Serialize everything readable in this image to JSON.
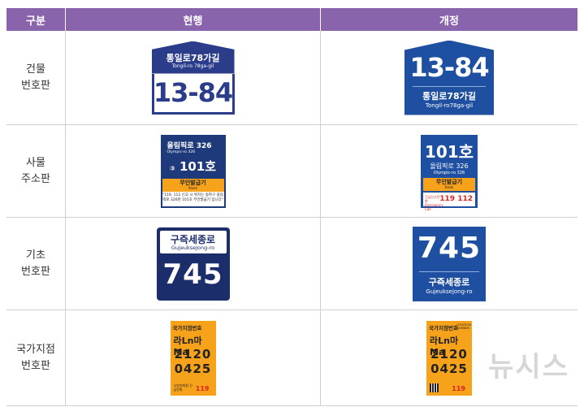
{
  "header": {
    "col1": "구분",
    "col2": "현행",
    "col3": "개정"
  },
  "rows": [
    {
      "label": "건물\n번호판"
    },
    {
      "label": "사물\n주소판"
    },
    {
      "label": "기초\n번호판"
    },
    {
      "label": "국가지점\n번호판"
    }
  ],
  "building": {
    "road": "통일로78가길",
    "road_rom_current": "Tongil-ro 78ga-gil",
    "road_rom_new": "Tongil-ro78ga-gil",
    "number": "13-84"
  },
  "object": {
    "road_current": "올림픽로 326",
    "road_rom_current": "Olympic-ro 326",
    "unit": "101호",
    "unit_prefix": "③",
    "kiosk": "무인발급기",
    "kiosk_en": "Kiosk",
    "note": "\"119, 112 신고 시 위치는 송파구 올림픽로 326번 101호 무인발급기 입니다\"",
    "road_new": "올림픽로 326",
    "road_rom_new": "Olympic-ro 326",
    "emergency_label": "긴급신고전화 Emergency Call",
    "emergency_nums": "119 112"
  },
  "base": {
    "road": "구즉세종로",
    "road_rom_current": "GujeukseJong-ro",
    "road_rom_new": "Gujeuksejong-ro",
    "number": "745"
  },
  "national": {
    "head": "국가지점번호",
    "head_en": "LOCATION NUMBER",
    "letters": "라Ln마Ma",
    "num1": "2120",
    "num2": "0425",
    "footer": "소방방재청 긴급전화",
    "emergency": "119"
  },
  "watermark": "뉴시스"
}
